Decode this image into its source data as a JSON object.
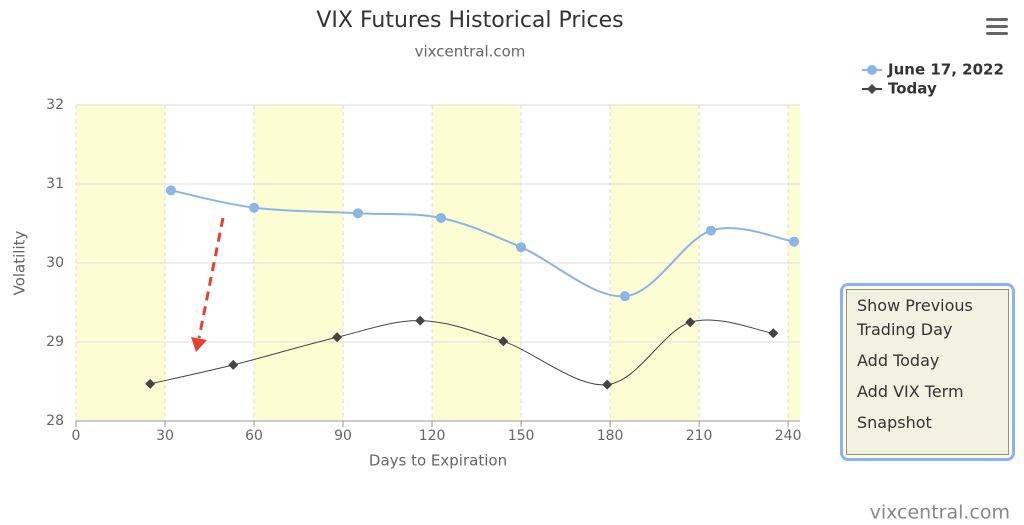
{
  "chart_data": {
    "type": "line",
    "title": "VIX Futures Historical Prices",
    "subtitle": "vixcentral.com",
    "xlabel": "Days to Expiration",
    "ylabel": "Volatility",
    "xlim": [
      0,
      244
    ],
    "ylim": [
      28,
      32
    ],
    "xticks": [
      0,
      30,
      60,
      90,
      120,
      150,
      180,
      210,
      240
    ],
    "yticks": [
      28,
      29,
      30,
      31,
      32
    ],
    "grid": true,
    "legend": "top-right",
    "shaded_ranges": [
      [
        0,
        30
      ],
      [
        60,
        90
      ],
      [
        120,
        150
      ],
      [
        180,
        210
      ],
      [
        240,
        244
      ]
    ],
    "shade_color": "#fdfdd4",
    "series": [
      {
        "name": "June 17, 2022",
        "color": "#8bb4e7",
        "marker": "circle",
        "x": [
          32,
          60,
          95,
          123,
          150,
          185,
          214,
          242
        ],
        "values": [
          30.92,
          30.7,
          30.63,
          30.57,
          30.2,
          29.58,
          30.41,
          30.27
        ]
      },
      {
        "name": "Today",
        "color": "#434348",
        "marker": "diamond",
        "x": [
          25,
          53,
          88,
          116,
          144,
          179,
          207,
          235
        ],
        "values": [
          28.47,
          28.71,
          29.06,
          29.27,
          29.01,
          28.46,
          29.25,
          29.11
        ]
      }
    ]
  },
  "menu_items": [
    "Show Previous Trading Day",
    "Add Today",
    "Add VIX Term",
    "Snapshot"
  ],
  "credit": "vixcentral.com"
}
